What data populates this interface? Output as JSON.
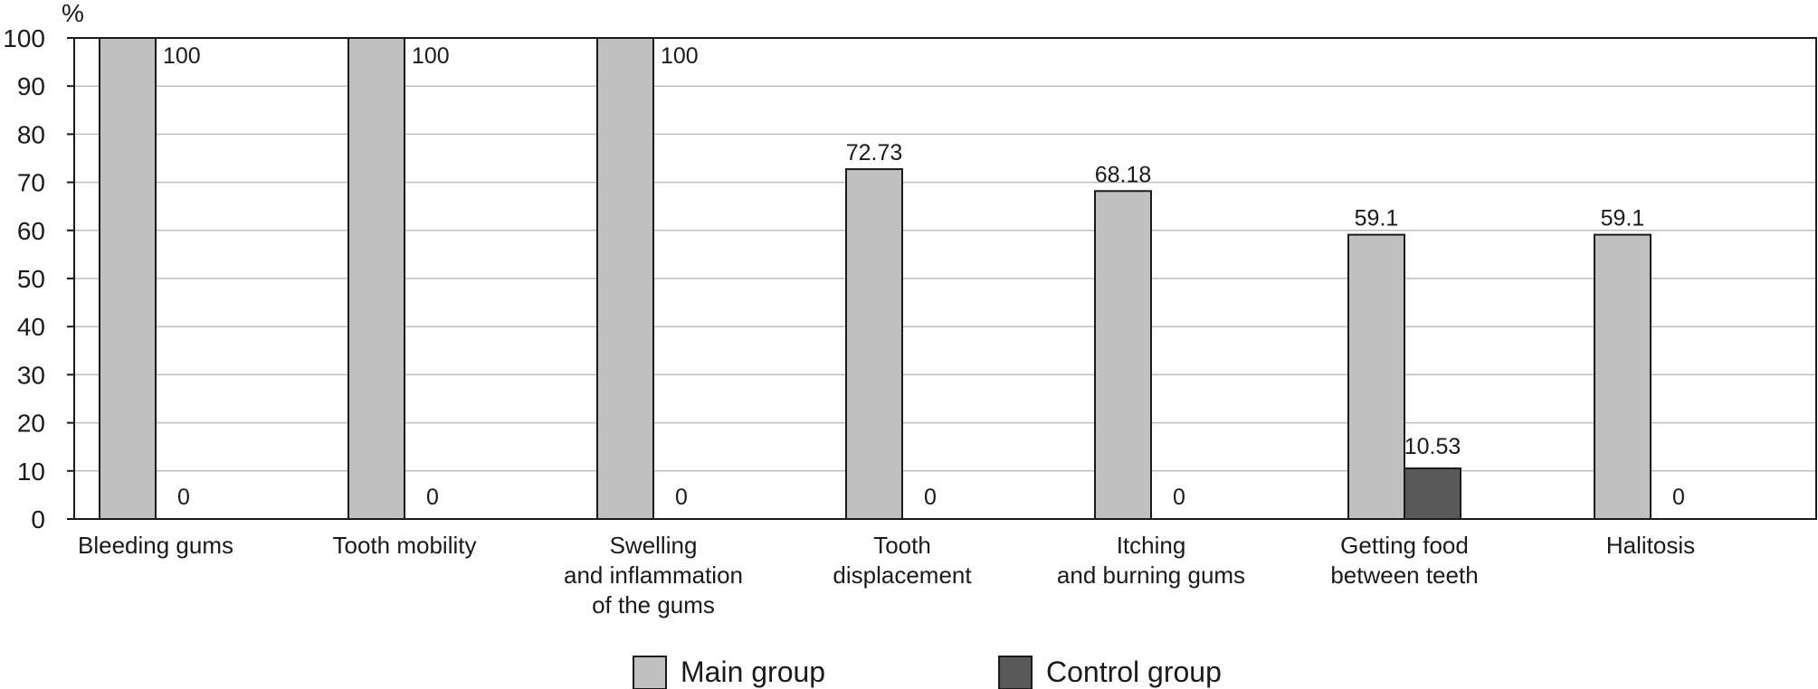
{
  "chart_data": {
    "type": "bar",
    "ylabel": "%",
    "ylim": [
      0,
      100
    ],
    "yticks": [
      0,
      10,
      20,
      30,
      40,
      50,
      60,
      70,
      80,
      90,
      100
    ],
    "grid": true,
    "legend_position": "bottom",
    "categories": [
      [
        "Bleeding gums"
      ],
      [
        "Tooth mobility"
      ],
      [
        "Swelling",
        "and inflammation",
        "of the gums"
      ],
      [
        "Tooth",
        "displacement"
      ],
      [
        "Itching",
        "and burning gums"
      ],
      [
        "Getting food",
        "between teeth"
      ],
      [
        "Halitosis"
      ]
    ],
    "series": [
      {
        "name": "Main group",
        "color": "#c0c0c0",
        "values": [
          100,
          100,
          100,
          72.73,
          68.18,
          59.1,
          59.1
        ],
        "labels": [
          "100",
          "100",
          "100",
          "72.73",
          "68.18",
          "59.1",
          "59.1"
        ]
      },
      {
        "name": "Control group",
        "color": "#595959",
        "values": [
          0,
          0,
          0,
          0,
          0,
          10.53,
          0
        ],
        "labels": [
          "0",
          "0",
          "0",
          "0",
          "0",
          "10.53",
          "0"
        ]
      }
    ]
  }
}
